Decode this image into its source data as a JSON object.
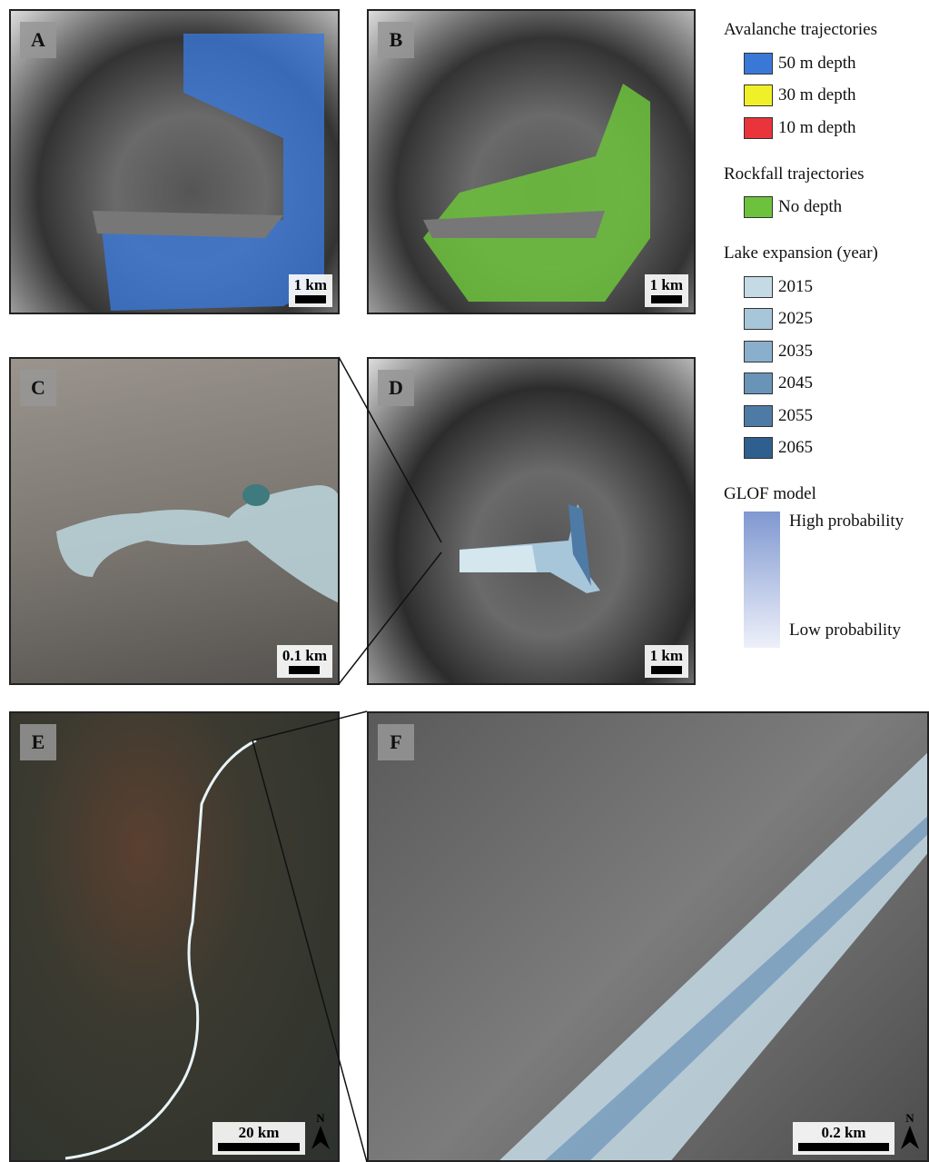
{
  "panels": [
    {
      "label": "A",
      "scale": "1 km"
    },
    {
      "label": "B",
      "scale": "1 km"
    },
    {
      "label": "C",
      "scale": "0.1 km"
    },
    {
      "label": "D",
      "scale": "1 km"
    },
    {
      "label": "E",
      "scale": "20 km",
      "north": "N"
    },
    {
      "label": "F",
      "scale": "0.2 km",
      "north": "N"
    }
  ],
  "legend": {
    "sections": [
      {
        "title": "Avalanche trajectories",
        "items": [
          {
            "label": "50 m depth",
            "color": "#3a78d8"
          },
          {
            "label": "30 m depth",
            "color": "#f0f028"
          },
          {
            "label": "10 m depth",
            "color": "#e8343a"
          }
        ]
      },
      {
        "title": "Rockfall trajectories",
        "items": [
          {
            "label": "No depth",
            "color": "#6cc23c"
          }
        ]
      },
      {
        "title": "Lake expansion (year)",
        "items": [
          {
            "label": "2015",
            "color": "#c4dbe6"
          },
          {
            "label": "2025",
            "color": "#a8c6da"
          },
          {
            "label": "2035",
            "color": "#8aafcc"
          },
          {
            "label": "2045",
            "color": "#6a93b8"
          },
          {
            "label": "2055",
            "color": "#4e7aa6"
          },
          {
            "label": "2065",
            "color": "#2f5f8e"
          }
        ]
      }
    ],
    "glof": {
      "title": "GLOF model",
      "high": "High probability",
      "low": "Low probability"
    }
  }
}
